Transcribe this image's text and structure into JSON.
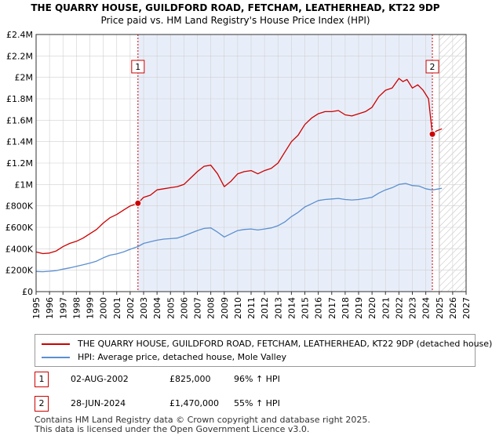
{
  "chart_data": {
    "type": "line",
    "title": "THE QUARRY HOUSE, GUILDFORD ROAD, FETCHAM, LEATHERHEAD, KT22 9DP",
    "subtitle": "Price paid vs. HM Land Registry's House Price Index (HPI)",
    "x_range": [
      1995,
      2027
    ],
    "ylim": [
      0,
      2400000
    ],
    "x_ticks": [
      "1995",
      "1996",
      "1997",
      "1998",
      "1999",
      "2000",
      "2001",
      "2002",
      "2003",
      "2004",
      "2005",
      "2006",
      "2007",
      "2008",
      "2009",
      "2010",
      "2011",
      "2012",
      "2013",
      "2014",
      "2015",
      "2016",
      "2017",
      "2018",
      "2019",
      "2020",
      "2021",
      "2022",
      "2023",
      "2024",
      "2025",
      "2026",
      "2027"
    ],
    "y_ticks": [
      {
        "value": 0,
        "label": "£0"
      },
      {
        "value": 200000,
        "label": "£200K"
      },
      {
        "value": 400000,
        "label": "£400K"
      },
      {
        "value": 600000,
        "label": "£600K"
      },
      {
        "value": 800000,
        "label": "£800K"
      },
      {
        "value": 1000000,
        "label": "£1M"
      },
      {
        "value": 1200000,
        "label": "£1.2M"
      },
      {
        "value": 1400000,
        "label": "£1.4M"
      },
      {
        "value": 1600000,
        "label": "£1.6M"
      },
      {
        "value": 1800000,
        "label": "£1.8M"
      },
      {
        "value": 2000000,
        "label": "£2M"
      },
      {
        "value": 2200000,
        "label": "£2.2M"
      },
      {
        "value": 2400000,
        "label": "£2.4M"
      }
    ],
    "shaded_region": {
      "from": 2002.58,
      "to": 2024.49
    },
    "hatched_region": {
      "from": 2025.0,
      "to": 2027
    },
    "series": [
      {
        "name": "THE QUARRY HOUSE, GUILDFORD ROAD, FETCHAM, LEATHERHEAD, KT22 9DP (detached house)",
        "color": "#cc0000",
        "x": [
          1995,
          1995.5,
          1996,
          1996.5,
          1997,
          1997.5,
          1998,
          1998.5,
          1999,
          1999.5,
          2000,
          2000.5,
          2001,
          2001.5,
          2002,
          2002.58,
          2003,
          2003.5,
          2004,
          2004.5,
          2005,
          2005.5,
          2006,
          2006.5,
          2007,
          2007.5,
          2008,
          2008.5,
          2009,
          2009.5,
          2010,
          2010.5,
          2011,
          2011.5,
          2012,
          2012.5,
          2013,
          2013.5,
          2014,
          2014.5,
          2015,
          2015.5,
          2016,
          2016.5,
          2017,
          2017.5,
          2018,
          2018.5,
          2019,
          2019.5,
          2020,
          2020.5,
          2021,
          2021.5,
          2022,
          2022.3,
          2022.6,
          2023,
          2023.4,
          2023.8,
          2024.2,
          2024.49,
          2024.8,
          2025.2
        ],
        "y": [
          370000,
          355000,
          360000,
          380000,
          420000,
          450000,
          470000,
          500000,
          540000,
          580000,
          640000,
          690000,
          720000,
          760000,
          800000,
          825000,
          880000,
          900000,
          950000,
          960000,
          970000,
          980000,
          1000000,
          1060000,
          1120000,
          1170000,
          1180000,
          1100000,
          980000,
          1030000,
          1100000,
          1120000,
          1130000,
          1100000,
          1130000,
          1150000,
          1200000,
          1300000,
          1400000,
          1460000,
          1560000,
          1620000,
          1660000,
          1680000,
          1680000,
          1690000,
          1650000,
          1640000,
          1660000,
          1680000,
          1720000,
          1820000,
          1880000,
          1900000,
          1990000,
          1960000,
          1980000,
          1900000,
          1930000,
          1880000,
          1800000,
          1470000,
          1500000,
          1520000
        ]
      },
      {
        "name": "HPI: Average price, detached house, Mole Valley",
        "color": "#5b8fd0",
        "x": [
          1995,
          1995.5,
          1996,
          1996.5,
          1997,
          1997.5,
          1998,
          1998.5,
          1999,
          1999.5,
          2000,
          2000.5,
          2001,
          2001.5,
          2002,
          2002.58,
          2003,
          2003.5,
          2004,
          2004.5,
          2005,
          2005.5,
          2006,
          2006.5,
          2007,
          2007.5,
          2008,
          2008.5,
          2009,
          2009.5,
          2010,
          2010.5,
          2011,
          2011.5,
          2012,
          2012.5,
          2013,
          2013.5,
          2014,
          2014.5,
          2015,
          2015.5,
          2016,
          2016.5,
          2017,
          2017.5,
          2018,
          2018.5,
          2019,
          2019.5,
          2020,
          2020.5,
          2021,
          2021.5,
          2022,
          2022.5,
          2023,
          2023.5,
          2024,
          2024.49,
          2025,
          2025.2
        ],
        "y": [
          188000,
          186000,
          190000,
          196000,
          210000,
          222000,
          236000,
          250000,
          266000,
          285000,
          315000,
          340000,
          352000,
          370000,
          395000,
          421000,
          450000,
          465000,
          480000,
          490000,
          495000,
          500000,
          520000,
          545000,
          570000,
          590000,
          595000,
          555000,
          510000,
          540000,
          570000,
          580000,
          585000,
          575000,
          585000,
          595000,
          615000,
          650000,
          700000,
          740000,
          790000,
          820000,
          850000,
          860000,
          865000,
          870000,
          860000,
          855000,
          860000,
          870000,
          880000,
          920000,
          950000,
          970000,
          1000000,
          1010000,
          990000,
          985000,
          960000,
          948000,
          960000,
          965000
        ]
      }
    ],
    "sales": [
      {
        "label": "1",
        "x": 2002.58,
        "y": 825000
      },
      {
        "label": "2",
        "x": 2024.49,
        "y": 1470000
      }
    ]
  },
  "legend": {
    "items": [
      {
        "label": "THE QUARRY HOUSE, GUILDFORD ROAD, FETCHAM, LEATHERHEAD, KT22 9DP (detached house)",
        "color": "#cc0000"
      },
      {
        "label": "HPI: Average price, detached house, Mole Valley",
        "color": "#5b8fd0"
      }
    ]
  },
  "sales_table": [
    {
      "num": "1",
      "date": "02-AUG-2002",
      "price": "£825,000",
      "hpi": "96% ↑ HPI"
    },
    {
      "num": "2",
      "date": "28-JUN-2024",
      "price": "£1,470,000",
      "hpi": "55% ↑ HPI"
    }
  ],
  "footer": {
    "line1": "Contains HM Land Registry data © Crown copyright and database right 2025.",
    "line2": "This data is licensed under the Open Government Licence v3.0."
  }
}
